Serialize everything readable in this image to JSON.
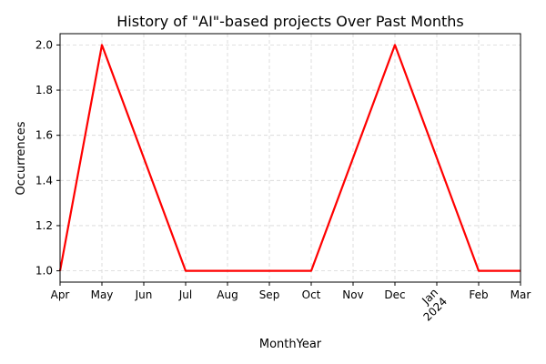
{
  "chart_data": {
    "type": "line",
    "title": "History of \"AI\"-based projects Over Past Months",
    "xlabel": "MonthYear",
    "ylabel": "Occurrences",
    "x_tick_labels": [
      {
        "month": "Apr"
      },
      {
        "month": "May"
      },
      {
        "month": "Jun"
      },
      {
        "month": "Jul"
      },
      {
        "month": "Aug"
      },
      {
        "month": "Sep"
      },
      {
        "month": "Oct"
      },
      {
        "month": "Nov"
      },
      {
        "month": "Dec"
      },
      {
        "month": "Jan",
        "year": "2024",
        "rotated": true
      },
      {
        "month": "Feb"
      },
      {
        "month": "Mar"
      }
    ],
    "x": [
      "2023-04",
      "2023-05",
      "2023-06",
      "2023-07",
      "2023-08",
      "2023-09",
      "2023-10",
      "2023-11",
      "2023-12",
      "2024-01",
      "2024-02",
      "2024-03"
    ],
    "series": [
      {
        "values": [
          1,
          2,
          1.5,
          1,
          1,
          1,
          1,
          1.5,
          2,
          1.5,
          1,
          1
        ],
        "color": "#ff0000"
      }
    ],
    "ylim": [
      0.95,
      2.05
    ],
    "y_ticks": [
      1.0,
      1.2,
      1.4,
      1.6,
      1.8,
      2.0
    ],
    "y_tick_labels": [
      "1.0",
      "1.2",
      "1.4",
      "1.6",
      "1.8",
      "2.0"
    ],
    "grid": true
  }
}
